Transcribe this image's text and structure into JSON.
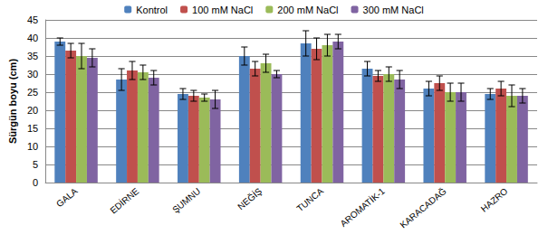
{
  "chart_data": {
    "type": "bar",
    "y_label": "Sürgün boyu (cm)",
    "categories": [
      "GALA",
      "EDİRNE",
      "ŞUMNU",
      "NEĞİŞ",
      "TUNCA",
      "AROMATİK-1",
      "KARACADAĞ",
      "HAZRO"
    ],
    "series": [
      {
        "name": "Kontrol",
        "color": "#4F81BD",
        "values": [
          39,
          28.5,
          24.5,
          35,
          38.5,
          31.5,
          26,
          24.5
        ],
        "errors": [
          1,
          3,
          1.5,
          2.5,
          3.5,
          2,
          2,
          1.5
        ]
      },
      {
        "name": "100 mM NaCl",
        "color": "#C0504D",
        "values": [
          36.5,
          31,
          24,
          31.5,
          37,
          29.5,
          27.5,
          26
        ],
        "errors": [
          2,
          2.5,
          1.5,
          2,
          3,
          1.5,
          2,
          2
        ]
      },
      {
        "name": "200 mM NaCl",
        "color": "#9BBB59",
        "values": [
          35,
          30.5,
          23.5,
          33,
          38,
          30,
          25,
          24
        ],
        "errors": [
          3.5,
          2,
          1,
          2.5,
          3,
          2,
          2.5,
          3
        ]
      },
      {
        "name": "300 mM NaCl",
        "color": "#8064A2",
        "values": [
          34.5,
          29,
          23,
          30,
          39,
          28.5,
          25,
          24
        ],
        "errors": [
          2.5,
          2,
          2.5,
          1,
          2,
          2.5,
          2.5,
          2
        ]
      }
    ],
    "ylim": [
      0,
      45
    ],
    "yticks": [
      0,
      5,
      10,
      15,
      20,
      25,
      30,
      35,
      40,
      45
    ],
    "grid": true,
    "legend": "top"
  }
}
